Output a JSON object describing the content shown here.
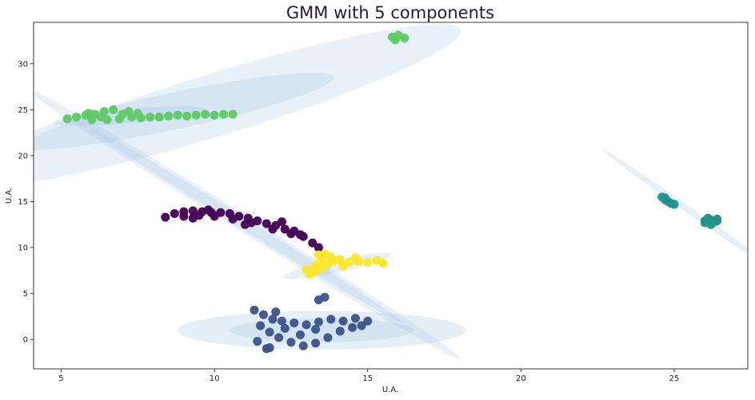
{
  "chart_data": {
    "type": "scatter",
    "title": "GMM with 5 components",
    "xlabel": "U.A.",
    "ylabel": "U.A.",
    "xlim": [
      4.1,
      27.4
    ],
    "ylim": [
      -3.2,
      34.5
    ],
    "xticks": [
      5,
      10,
      15,
      20,
      25
    ],
    "yticks": [
      0,
      5,
      10,
      15,
      20,
      25,
      30
    ],
    "grid": false,
    "legend": "none",
    "components": [
      {
        "color": "#440154",
        "points": [
          [
            8.4,
            13.3
          ],
          [
            8.7,
            13.7
          ],
          [
            9.0,
            13.9
          ],
          [
            9.3,
            14.0
          ],
          [
            9.6,
            13.9
          ],
          [
            9.9,
            13.8
          ],
          [
            10.2,
            13.8
          ],
          [
            10.5,
            13.7
          ],
          [
            10.8,
            13.4
          ],
          [
            11.1,
            13.2
          ],
          [
            11.4,
            12.9
          ],
          [
            11.7,
            12.6
          ],
          [
            12.0,
            12.4
          ],
          [
            12.3,
            12.0
          ],
          [
            12.6,
            11.8
          ],
          [
            12.9,
            11.2
          ],
          [
            13.2,
            10.5
          ],
          [
            13.4,
            10.0
          ],
          [
            9.0,
            13.4
          ],
          [
            9.5,
            13.5
          ],
          [
            10.0,
            13.4
          ],
          [
            10.6,
            13.1
          ],
          [
            11.2,
            12.7
          ],
          [
            11.9,
            12.0
          ],
          [
            12.5,
            11.5
          ],
          [
            9.8,
            14.1
          ],
          [
            11.0,
            12.5
          ],
          [
            12.2,
            12.8
          ],
          [
            12.8,
            11.4
          ],
          [
            9.3,
            13.2
          ]
        ],
        "ellipses": [
          {
            "center": [
              11.0,
              12.5
            ],
            "semi_axes": [
              8.3,
              0.9
            ],
            "angle_deg": -32,
            "opacity": 0.25
          },
          {
            "center": [
              11.0,
              12.5
            ],
            "semi_axes": [
              6.0,
              0.6
            ],
            "angle_deg": -32,
            "opacity": 0.3
          }
        ]
      },
      {
        "color": "#3b528b",
        "points": [
          [
            11.3,
            3.2
          ],
          [
            11.6,
            2.7
          ],
          [
            11.9,
            2.2
          ],
          [
            12.2,
            2.0
          ],
          [
            12.6,
            1.8
          ],
          [
            13.0,
            1.6
          ],
          [
            13.4,
            1.9
          ],
          [
            13.8,
            2.2
          ],
          [
            14.2,
            2.0
          ],
          [
            14.6,
            2.3
          ],
          [
            15.0,
            2.0
          ],
          [
            11.5,
            1.5
          ],
          [
            11.8,
            0.8
          ],
          [
            12.1,
            0.2
          ],
          [
            12.5,
            -0.3
          ],
          [
            12.9,
            -0.7
          ],
          [
            13.3,
            -0.4
          ],
          [
            13.7,
            0.2
          ],
          [
            14.1,
            0.9
          ],
          [
            14.5,
            1.3
          ],
          [
            11.4,
            -0.2
          ],
          [
            11.8,
            -0.9
          ],
          [
            12.3,
            1.2
          ],
          [
            12.8,
            0.5
          ],
          [
            13.3,
            1.1
          ],
          [
            13.6,
            4.6
          ],
          [
            13.4,
            4.3
          ],
          [
            14.8,
            1.5
          ],
          [
            12.0,
            3.0
          ],
          [
            11.7,
            -1.0
          ]
        ],
        "ellipses": [
          {
            "center": [
              13.5,
              1.0
            ],
            "semi_axes": [
              4.7,
              2.1
            ],
            "angle_deg": 0,
            "opacity": 0.3
          },
          {
            "center": [
              13.5,
              1.0
            ],
            "semi_axes": [
              3.0,
              1.3
            ],
            "angle_deg": 0,
            "opacity": 0.3
          }
        ]
      },
      {
        "color": "#21918c",
        "points": [
          [
            24.6,
            15.5
          ],
          [
            24.7,
            15.2
          ],
          [
            24.8,
            15.0
          ],
          [
            24.9,
            14.8
          ],
          [
            25.0,
            14.7
          ],
          [
            26.0,
            12.9
          ],
          [
            26.1,
            13.2
          ],
          [
            26.2,
            13.0
          ],
          [
            26.3,
            12.8
          ],
          [
            26.4,
            13.1
          ],
          [
            26.2,
            12.5
          ],
          [
            26.0,
            12.7
          ],
          [
            24.7,
            15.4
          ],
          [
            26.4,
            12.9
          ]
        ],
        "ellipses": [
          {
            "center": [
              25.6,
              13.8
            ],
            "semi_axes": [
              3.6,
              0.35
            ],
            "angle_deg": -35,
            "opacity": 0.3
          }
        ]
      },
      {
        "color": "#5ec962",
        "points": [
          [
            5.2,
            24.0
          ],
          [
            5.5,
            24.2
          ],
          [
            5.8,
            24.4
          ],
          [
            6.1,
            24.5
          ],
          [
            6.4,
            24.8
          ],
          [
            6.7,
            25.0
          ],
          [
            7.0,
            24.5
          ],
          [
            7.3,
            24.2
          ],
          [
            7.6,
            24.1
          ],
          [
            7.9,
            24.2
          ],
          [
            8.2,
            24.2
          ],
          [
            8.5,
            24.3
          ],
          [
            8.8,
            24.4
          ],
          [
            9.1,
            24.3
          ],
          [
            9.4,
            24.4
          ],
          [
            9.7,
            24.5
          ],
          [
            10.0,
            24.4
          ],
          [
            10.3,
            24.5
          ],
          [
            10.6,
            24.5
          ],
          [
            6.0,
            23.9
          ],
          [
            6.5,
            23.9
          ],
          [
            6.9,
            24.0
          ],
          [
            7.2,
            24.8
          ],
          [
            5.9,
            24.6
          ],
          [
            15.8,
            32.9
          ],
          [
            16.0,
            33.1
          ],
          [
            16.2,
            32.8
          ],
          [
            15.9,
            32.6
          ],
          [
            6.3,
            24.2
          ],
          [
            7.5,
            24.6
          ]
        ],
        "ellipses": [
          {
            "center": [
              10.0,
              25.5
            ],
            "semi_axes": [
              8.4,
              3.4
            ],
            "angle_deg": 17,
            "opacity": 0.25
          },
          {
            "center": [
              8.6,
              24.8
            ],
            "semi_axes": [
              5.4,
              2.0
            ],
            "angle_deg": 12,
            "opacity": 0.3
          },
          {
            "center": [
              7.2,
              24.3
            ],
            "semi_axes": [
              2.5,
              0.8
            ],
            "angle_deg": 5,
            "opacity": 0.3
          }
        ]
      },
      {
        "color": "#fde725",
        "points": [
          [
            13.1,
            7.1
          ],
          [
            13.3,
            7.4
          ],
          [
            13.5,
            7.8
          ],
          [
            13.7,
            8.2
          ],
          [
            13.9,
            8.6
          ],
          [
            13.6,
            9.3
          ],
          [
            13.8,
            9.0
          ],
          [
            14.1,
            8.7
          ],
          [
            14.4,
            8.4
          ],
          [
            14.7,
            8.5
          ],
          [
            15.0,
            8.4
          ],
          [
            15.3,
            8.6
          ],
          [
            15.5,
            8.3
          ],
          [
            13.3,
            8.1
          ],
          [
            13.5,
            8.7
          ],
          [
            13.4,
            9.2
          ],
          [
            13.0,
            7.6
          ],
          [
            14.2,
            8.0
          ],
          [
            14.6,
            8.9
          ],
          [
            13.2,
            7.3
          ]
        ],
        "ellipses": [
          {
            "center": [
              14.0,
              8.0
            ],
            "semi_axes": [
              1.8,
              0.7
            ],
            "angle_deg": 12,
            "opacity": 0.3
          }
        ]
      }
    ]
  }
}
